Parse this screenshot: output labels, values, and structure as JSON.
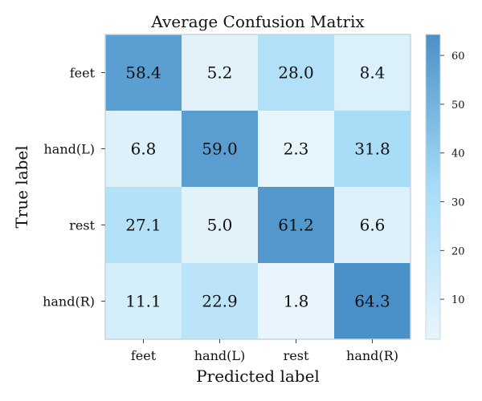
{
  "chart_data": {
    "type": "heatmap",
    "title": "Average Confusion Matrix",
    "xlabel": "Predicted label",
    "ylabel": "True label",
    "x_categories": [
      "feet",
      "hand(L)",
      "rest",
      "hand(R)"
    ],
    "y_categories": [
      "feet",
      "hand(L)",
      "rest",
      "hand(R)"
    ],
    "values": [
      [
        58.4,
        5.2,
        28.0,
        8.4
      ],
      [
        6.8,
        59.0,
        2.3,
        31.8
      ],
      [
        27.1,
        5.0,
        61.2,
        6.6
      ],
      [
        11.1,
        22.9,
        1.8,
        64.3
      ]
    ],
    "value_labels": [
      [
        "58.4",
        "5.2",
        "28.0",
        "8.4"
      ],
      [
        "6.8",
        "59.0",
        "2.3",
        "31.8"
      ],
      [
        "27.1",
        "5.0",
        "61.2",
        "6.6"
      ],
      [
        "11.1",
        "22.9",
        "1.8",
        "64.3"
      ]
    ],
    "colorbar": {
      "range": [
        1.8,
        64.3
      ],
      "ticks": [
        10,
        20,
        30,
        40,
        50,
        60
      ],
      "tick_labels": [
        "10",
        "20",
        "30",
        "40",
        "50",
        "60"
      ],
      "colors": [
        "#e8f5fc",
        "#a6dcf7",
        "#4a90c8"
      ]
    },
    "grid": false,
    "legend": "colorbar-right"
  }
}
